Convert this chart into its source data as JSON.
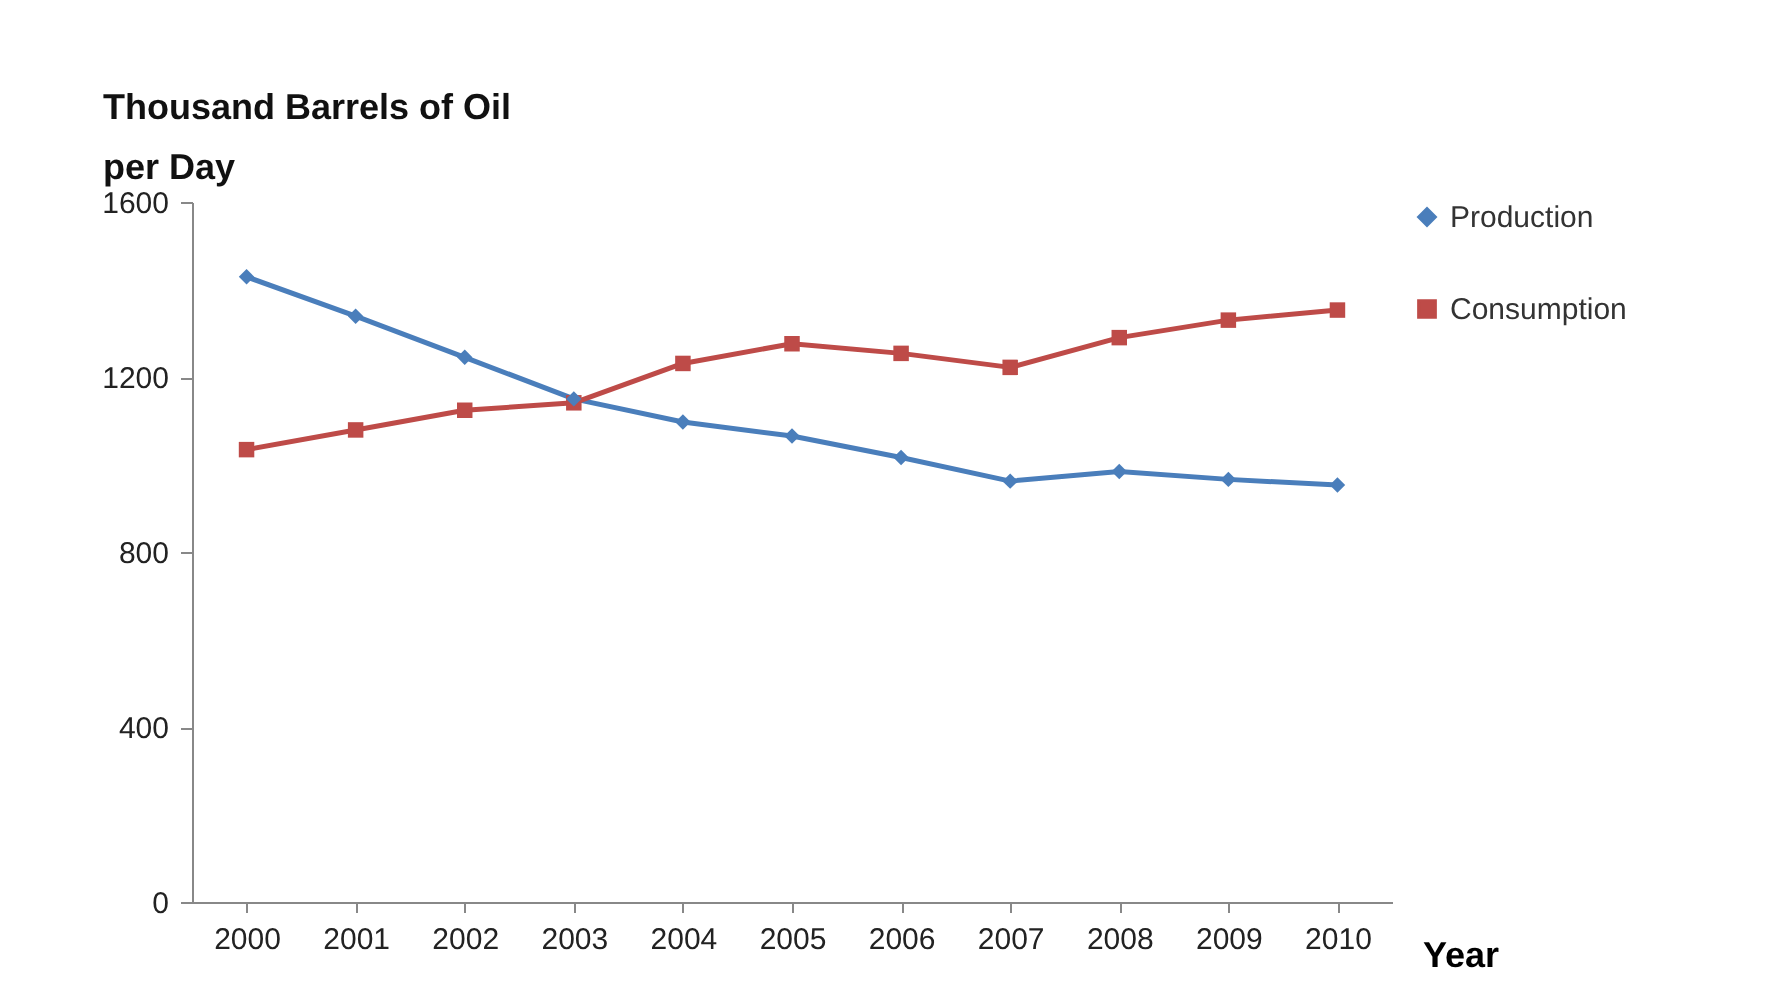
{
  "chart_data": {
    "type": "line",
    "ylabel": "Thousand Barrels of Oil per Day",
    "xlabel": "Year",
    "categories": [
      "2000",
      "2001",
      "2002",
      "2003",
      "2004",
      "2005",
      "2006",
      "2007",
      "2008",
      "2009",
      "2010"
    ],
    "series": [
      {
        "name": "Production",
        "color": "#4a7ebb",
        "marker": "diamond",
        "values": [
          1429,
          1339,
          1245,
          1150,
          1097,
          1065,
          1016,
          962,
          984,
          966,
          953
        ]
      },
      {
        "name": "Consumption",
        "color": "#be4b48",
        "marker": "square",
        "values": [
          1034,
          1079,
          1124,
          1141,
          1231,
          1276,
          1254,
          1222,
          1290,
          1330,
          1353
        ]
      }
    ],
    "ylim": [
      0,
      1600
    ],
    "yticks": [
      0,
      400,
      800,
      1200,
      1600
    ],
    "grid": false,
    "legend": "right",
    "line_style": "solid"
  }
}
